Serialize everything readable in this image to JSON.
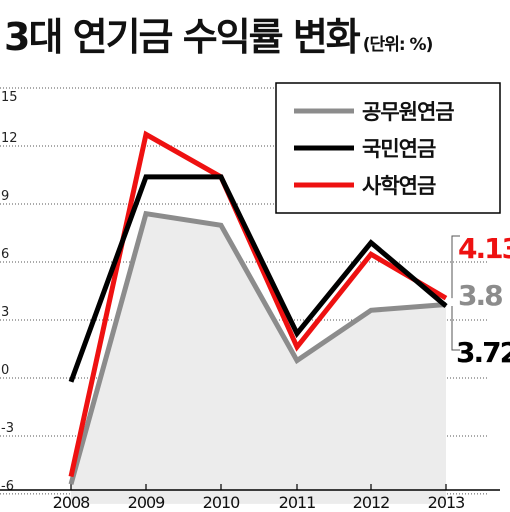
{
  "chart_data": {
    "type": "line",
    "title": "3대 연기금 수익률 변화",
    "unit": "(단위: %)",
    "categories": [
      "2008",
      "2009",
      "2010",
      "2011",
      "2012",
      "2013"
    ],
    "yticks": [
      "15",
      "12",
      "9",
      "6",
      "3",
      "0",
      "-3",
      "-6"
    ],
    "ylim": [
      -6,
      15
    ],
    "grid": true,
    "legend_position": "top-right",
    "series": [
      {
        "name": "공무원연금",
        "color": "#8c8c8c",
        "values": [
          -5.5,
          8.5,
          7.9,
          0.9,
          3.5,
          3.8
        ]
      },
      {
        "name": "국민연금",
        "color": "#000000",
        "values": [
          -0.2,
          10.4,
          10.4,
          2.3,
          7.0,
          3.72
        ]
      },
      {
        "name": "사학연금",
        "color": "#ee1111",
        "values": [
          -5.1,
          12.6,
          10.4,
          1.6,
          6.4,
          4.13
        ]
      }
    ],
    "annotations": [
      {
        "text": "4.13",
        "color": "#ee1111"
      },
      {
        "text": "3.8",
        "color": "#8c8c8c"
      },
      {
        "text": "3.72",
        "color": "#000000"
      }
    ]
  }
}
